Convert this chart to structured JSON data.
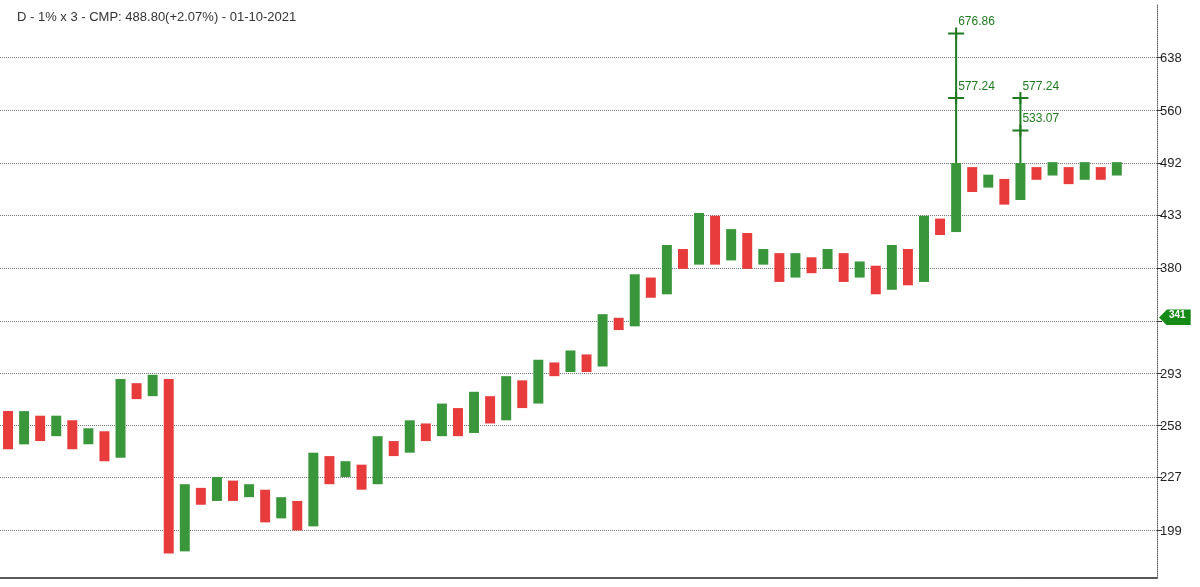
{
  "chart_data": {
    "type": "bar",
    "title": "D - 1% x 3 - CMP: 488.80(+2.07%) - 01-10-2021",
    "categories": [
      null,
      null,
      null,
      null,
      null,
      null,
      null,
      null,
      null,
      null,
      null,
      null,
      null,
      null,
      null,
      null,
      null,
      null,
      null,
      null,
      null,
      null,
      null,
      null,
      null,
      null,
      null,
      null,
      null,
      null,
      null,
      null,
      null,
      null,
      null,
      null,
      null,
      null,
      null,
      null,
      null,
      null,
      null,
      null,
      null,
      null,
      null,
      null,
      null,
      null,
      null,
      null,
      null,
      null,
      null,
      null,
      null,
      null,
      null,
      null,
      null,
      null,
      null,
      null,
      null,
      null,
      null,
      null,
      null,
      null,
      null,
      null
    ],
    "log": true,
    "ylim": [
      177,
      726
    ],
    "yticks": [
      199,
      227,
      258,
      293,
      {
        "value": 333,
        "label": null
      },
      380,
      433,
      492,
      560,
      638
    ],
    "grid": "y",
    "tick_labels": "y",
    "annotations": [
      "341"
    ],
    "series": [
      {
        "colors": [
          "#e83b3b",
          "#3a963a",
          "#e83b3b",
          "#3a963a",
          "#e83b3b",
          "#3a963a",
          "#e83b3b",
          "#3a963a",
          "#e83b3b",
          "#3a963a",
          "#e83b3b",
          "#3a963a",
          "#e83b3b",
          "#3a963a",
          "#e83b3b",
          "#3a963a",
          "#e83b3b",
          "#3a963a",
          "#e83b3b",
          "#3a963a",
          "#e83b3b",
          "#3a963a",
          "#e83b3b",
          "#3a963a",
          "#e83b3b",
          "#3a963a",
          "#e83b3b",
          "#3a963a",
          "#e83b3b",
          "#3a963a",
          "#e83b3b",
          "#3a963a",
          "#e83b3b",
          "#3a963a",
          "#e83b3b",
          "#3a963a",
          "#e83b3b",
          "#3a963a",
          "#e83b3b",
          "#3a963a",
          "#e83b3b",
          "#3a963a",
          "#e83b3b",
          "#3a963a",
          "#e83b3b",
          "#3a963a",
          "#e83b3b",
          "#3a963a",
          "#e83b3b",
          "#3a963a",
          "#e83b3b",
          "#3a963a",
          "#e83b3b",
          "#3a963a",
          "#e83b3b",
          "#3a963a",
          "#e83b3b",
          "#3a963a",
          "#e83b3b",
          "#3a963a",
          "#e83b3b",
          "#3a963a",
          "#e83b3b",
          "#3a963a",
          "#e83b3b",
          "#3a963a",
          "#e83b3b",
          "#3a963a",
          "#e83b3b",
          "#3a963a",
          null,
          null
        ],
        "base": [
          243,
          246,
          248,
          251,
          243,
          246,
          236,
          238,
          275,
          277,
          188,
          189,
          212,
          214,
          214,
          216,
          203,
          205,
          199,
          201,
          223,
          227,
          220,
          223,
          239,
          241,
          248,
          251,
          251,
          253,
          259,
          261,
          269,
          272,
          291,
          294,
          294,
          298,
          326,
          329,
          353,
          356,
          379,
          383,
          383,
          387,
          379,
          383,
          367,
          371,
          375,
          379,
          367,
          371,
          356,
          360,
          364,
          367,
          412,
          415,
          458,
          463,
          444,
          449,
          472,
          477,
          467,
          472,
          472,
          477,
          null,
          null
        ],
        "values": [
          24,
          21,
          16,
          13,
          18,
          10,
          18,
          51,
          11,
          15,
          101,
          34,
          9,
          13,
          11,
          7,
          17,
          11,
          15,
          40,
          16,
          9,
          14,
          28,
          9,
          20,
          11,
          21,
          18,
          27,
          18,
          30,
          19,
          31,
          10,
          16,
          13,
          41,
          10,
          45,
          18,
          46,
          19,
          52,
          49,
          31,
          35,
          15,
          27,
          23,
          15,
          19,
          27,
          15,
          26,
          42,
          34,
          65,
          17,
          77,
          29,
          15,
          29,
          43,
          15,
          16,
          20,
          21,
          15,
          16,
          null,
          null
        ]
      },
      {
        "color": "#1e7a1e",
        "base": [
          null,
          null,
          null,
          null,
          null,
          null,
          null,
          null,
          null,
          null,
          null,
          null,
          null,
          null,
          null,
          null,
          null,
          null,
          null,
          null,
          null,
          null,
          null,
          null,
          null,
          null,
          null,
          null,
          null,
          null,
          null,
          null,
          null,
          null,
          null,
          null,
          null,
          null,
          null,
          null,
          null,
          null,
          null,
          null,
          null,
          null,
          null,
          null,
          null,
          null,
          null,
          null,
          null,
          null,
          null,
          null,
          null,
          null,
          null,
          492,
          null,
          null,
          null,
          492,
          null,
          null,
          null,
          null,
          null,
          null,
          null,
          null
        ],
        "values": [
          null,
          null,
          null,
          null,
          null,
          null,
          null,
          null,
          null,
          null,
          null,
          null,
          null,
          null,
          null,
          null,
          null,
          null,
          null,
          null,
          null,
          null,
          null,
          null,
          null,
          null,
          null,
          null,
          null,
          null,
          null,
          null,
          null,
          null,
          null,
          null,
          null,
          null,
          null,
          null,
          null,
          null,
          null,
          null,
          null,
          null,
          null,
          null,
          null,
          null,
          null,
          null,
          null,
          null,
          null,
          null,
          null,
          null,
          null,
          184.86,
          null,
          null,
          null,
          85.24,
          null,
          null,
          null,
          null,
          null,
          null,
          null,
          null
        ]
      },
      {
        "type": "scatter",
        "color": "#1e7a1e",
        "marker": "cross",
        "values": [
          null,
          null,
          null,
          null,
          null,
          null,
          null,
          null,
          null,
          null,
          null,
          null,
          null,
          null,
          null,
          null,
          null,
          null,
          null,
          null,
          null,
          null,
          null,
          null,
          null,
          null,
          null,
          null,
          null,
          null,
          null,
          null,
          null,
          null,
          null,
          null,
          null,
          null,
          null,
          null,
          null,
          null,
          null,
          null,
          null,
          null,
          null,
          null,
          null,
          null,
          null,
          null,
          null,
          null,
          null,
          null,
          null,
          null,
          null,
          676.86,
          null,
          null,
          null,
          577.24,
          null,
          null,
          null,
          null,
          null,
          null,
          null,
          null
        ],
        "value_labels": [
          null,
          null,
          null,
          null,
          null,
          null,
          null,
          null,
          null,
          null,
          null,
          null,
          null,
          null,
          null,
          null,
          null,
          null,
          null,
          null,
          null,
          null,
          null,
          null,
          null,
          null,
          null,
          null,
          null,
          null,
          null,
          null,
          null,
          null,
          null,
          null,
          null,
          null,
          null,
          null,
          null,
          null,
          null,
          null,
          null,
          null,
          null,
          null,
          null,
          null,
          null,
          null,
          null,
          null,
          null,
          null,
          null,
          null,
          null,
          "676.86",
          null,
          null,
          null,
          "577.24",
          null,
          null,
          null,
          null,
          null,
          null,
          null,
          null
        ]
      },
      {
        "type": "scatter",
        "color": "#1e7a1e",
        "marker": "cross",
        "values": [
          null,
          null,
          null,
          null,
          null,
          null,
          null,
          null,
          null,
          null,
          null,
          null,
          null,
          null,
          null,
          null,
          null,
          null,
          null,
          null,
          null,
          null,
          null,
          null,
          null,
          null,
          null,
          null,
          null,
          null,
          null,
          null,
          null,
          null,
          null,
          null,
          null,
          null,
          null,
          null,
          null,
          null,
          null,
          null,
          null,
          null,
          null,
          null,
          null,
          null,
          null,
          null,
          null,
          null,
          null,
          null,
          null,
          null,
          null,
          577.24,
          null,
          null,
          null,
          533.07,
          null,
          null,
          null,
          null,
          null,
          null,
          null,
          null
        ],
        "value_labels": [
          null,
          null,
          null,
          null,
          null,
          null,
          null,
          null,
          null,
          null,
          null,
          null,
          null,
          null,
          null,
          null,
          null,
          null,
          null,
          null,
          null,
          null,
          null,
          null,
          null,
          null,
          null,
          null,
          null,
          null,
          null,
          null,
          null,
          null,
          null,
          null,
          null,
          null,
          null,
          null,
          null,
          null,
          null,
          null,
          null,
          null,
          null,
          null,
          null,
          null,
          null,
          null,
          null,
          null,
          null,
          null,
          null,
          null,
          null,
          "577.24",
          null,
          null,
          null,
          "533.07",
          null,
          null,
          null,
          null,
          null,
          null,
          null,
          null
        ]
      }
    ]
  }
}
